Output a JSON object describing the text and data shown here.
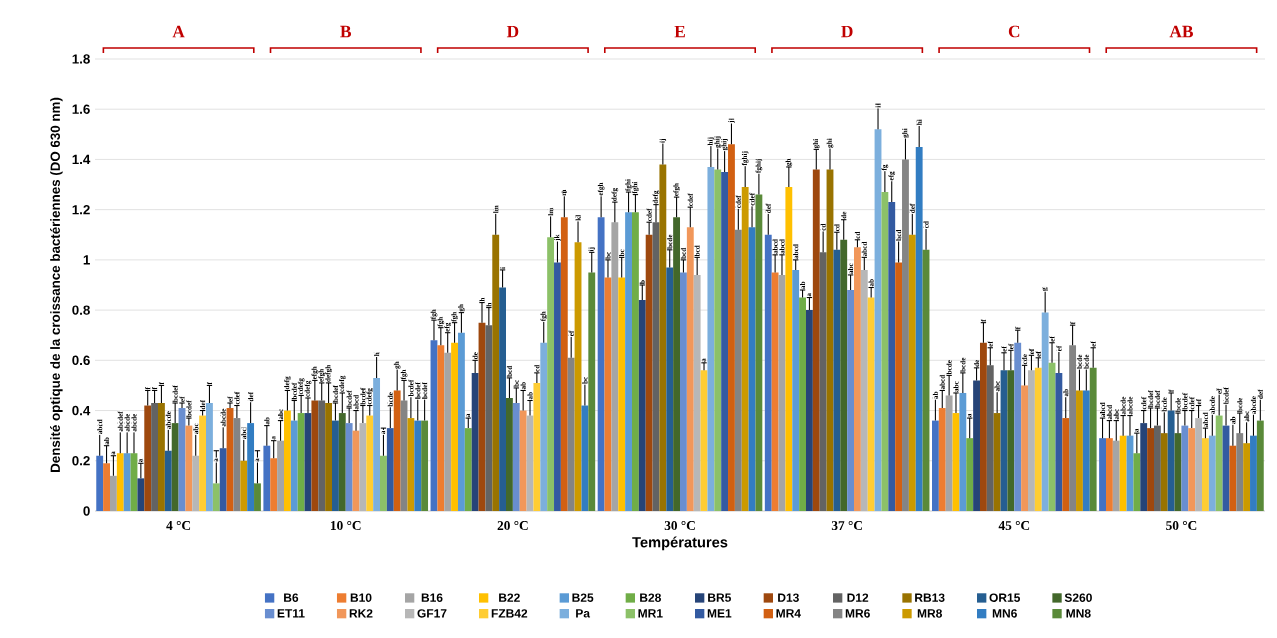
{
  "chart_data": {
    "type": "bar",
    "xlabel": "Températures",
    "ylabel": "Densité optique de la croissance bactériennes (DO 630 nm)",
    "categories": [
      "4 °C",
      "10 °C",
      "20 °C",
      "30 °C",
      "37 °C",
      "45 °C",
      "50 °C"
    ],
    "ylim": [
      0,
      1.8
    ],
    "yticks": [
      0,
      0.2,
      0.4,
      0.6,
      0.8,
      1,
      1.2,
      1.4,
      1.6,
      1.8
    ],
    "grid": "y",
    "legend": "bottom",
    "annotations": [
      "A",
      "B",
      "D",
      "E",
      "D",
      "C",
      "AB"
    ],
    "series": [
      {
        "name": "B6",
        "color": "#4472c4",
        "values": [
          0.22,
          0.26,
          0.68,
          1.17,
          1.1,
          0.36,
          0.29
        ],
        "errors": [
          0.12,
          0.08,
          0.08,
          0.09,
          0.09,
          0.09,
          0.08
        ],
        "value_labels": [
          "abcd",
          "ab",
          "fgh",
          "efgh",
          "def",
          "ab",
          "abcd"
        ]
      },
      {
        "name": "B10",
        "color": "#ed7d31",
        "values": [
          0.19,
          0.21,
          0.66,
          0.93,
          0.95,
          0.41,
          0.29
        ],
        "errors": [
          0.07,
          0.07,
          0.07,
          0.07,
          0.07,
          0.07,
          0.07
        ],
        "value_labels": [
          "ab",
          "a",
          "fgh",
          "bc",
          "abcd",
          "abcd",
          "abcd"
        ]
      },
      {
        "name": "B16",
        "color": "#a5a5a5",
        "values": [
          0.14,
          0.28,
          0.63,
          1.15,
          0.94,
          0.46,
          0.28
        ],
        "errors": [
          0.08,
          0.08,
          0.08,
          0.08,
          0.08,
          0.08,
          0.08
        ],
        "value_labels": [
          "a",
          "abc",
          "efg",
          "defg",
          "abcd",
          "bcde",
          "abc"
        ]
      },
      {
        "name": "B22",
        "color": "#ffc000",
        "values": [
          0.23,
          0.4,
          0.67,
          0.93,
          1.29,
          0.39,
          0.3
        ],
        "errors": [
          0.12,
          0.08,
          0.08,
          0.08,
          0.08,
          0.08,
          0.08
        ],
        "value_labels": [
          "abcdef",
          "defg",
          "fgh",
          "bc",
          "gh",
          "abc",
          "abcde"
        ]
      },
      {
        "name": "B25",
        "color": "#5b9bd5",
        "values": [
          0.23,
          0.36,
          0.71,
          1.19,
          0.96,
          0.47,
          0.3
        ],
        "errors": [
          0.12,
          0.08,
          0.08,
          0.08,
          0.04,
          0.08,
          0.08
        ],
        "value_labels": [
          "abcde",
          "bcdef",
          "gh",
          "fghi",
          "abcd",
          "bcde",
          "abcde"
        ]
      },
      {
        "name": "B28",
        "color": "#70ad47",
        "values": [
          0.23,
          0.39,
          0.33,
          1.19,
          0.85,
          0.29,
          0.23
        ],
        "errors": [
          0.12,
          0.07,
          0.04,
          0.07,
          0.03,
          0.08,
          0.08
        ],
        "value_labels": [
          "abcde",
          "cdefg",
          "a",
          "fghi",
          "ab",
          "a",
          "a"
        ]
      },
      {
        "name": "BR5",
        "color": "#264478",
        "values": [
          0.13,
          0.39,
          0.55,
          0.84,
          0.8,
          0.52,
          0.35
        ],
        "errors": [
          0.06,
          0.06,
          0.05,
          0.06,
          0.05,
          0.05,
          0.05
        ],
        "value_labels": [
          "a",
          "cdefg",
          "de",
          "b",
          "a",
          "de",
          "cdef"
        ]
      },
      {
        "name": "D13",
        "color": "#9e480e",
        "values": [
          0.42,
          0.44,
          0.75,
          1.1,
          1.36,
          0.67,
          0.33
        ],
        "errors": [
          0.06,
          0.08,
          0.08,
          0.05,
          0.08,
          0.08,
          0.08
        ],
        "value_labels": [
          "f",
          "efgh",
          "h",
          "cdef",
          "ghi",
          "f",
          "bcdef"
        ]
      },
      {
        "name": "D12",
        "color": "#636363",
        "values": [
          0.43,
          0.44,
          0.74,
          1.15,
          1.03,
          0.58,
          0.34
        ],
        "errors": [
          0.05,
          0.07,
          0.07,
          0.07,
          0.09,
          0.07,
          0.07
        ],
        "value_labels": [
          "f",
          "efgh",
          "h",
          "defg",
          "cd",
          "ef",
          "bcdef"
        ]
      },
      {
        "name": "RB13",
        "color": "#997300",
        "values": [
          0.43,
          0.43,
          1.1,
          1.38,
          1.36,
          0.39,
          0.31
        ],
        "errors": [
          0.07,
          0.08,
          0.1,
          0.1,
          0.1,
          0.1,
          0.1
        ],
        "value_labels": [
          "f",
          "defgh",
          "lm",
          "ij",
          "ghi",
          "abc",
          "bcde"
        ]
      },
      {
        "name": "OR15",
        "color": "#255e91",
        "values": [
          0.24,
          0.36,
          0.89,
          0.97,
          1.04,
          0.56,
          0.4
        ],
        "errors": [
          0.12,
          0.07,
          0.07,
          0.07,
          0.07,
          0.07,
          0.07
        ],
        "value_labels": [
          "abcde",
          "bcdef",
          "i",
          "bcde",
          "cd",
          "ef",
          "f"
        ]
      },
      {
        "name": "S260",
        "color": "#43682b",
        "values": [
          0.35,
          0.39,
          0.45,
          1.17,
          1.08,
          0.56,
          0.31
        ],
        "errors": [
          0.08,
          0.08,
          0.08,
          0.08,
          0.08,
          0.08,
          0.08
        ],
        "value_labels": [
          "bcdef",
          "cdefg",
          "bcd",
          "efgh",
          "de",
          "ef",
          "bcde"
        ]
      },
      {
        "name": "ET11",
        "color": "#698ed0",
        "values": [
          0.41,
          0.35,
          0.43,
          0.95,
          0.88,
          0.67,
          0.34
        ],
        "errors": [
          0.02,
          0.06,
          0.06,
          0.05,
          0.06,
          0.05,
          0.06
        ],
        "value_labels": [
          "ef",
          "bcdef",
          "bc",
          "bcd",
          "abc",
          "f",
          "bcdef"
        ]
      },
      {
        "name": "RK2",
        "color": "#f1975a",
        "values": [
          0.34,
          0.32,
          0.4,
          1.13,
          1.05,
          0.5,
          0.33
        ],
        "errors": [
          0.03,
          0.08,
          0.08,
          0.08,
          0.03,
          0.08,
          0.07
        ],
        "value_labels": [
          "bcdef",
          "abcd",
          "ab",
          "cdef",
          "cd",
          "cde",
          "cdef"
        ]
      },
      {
        "name": "GF17",
        "color": "#b7b7b7",
        "values": [
          0.22,
          0.35,
          0.38,
          0.94,
          0.96,
          0.56,
          0.37
        ],
        "errors": [
          0.11,
          0.07,
          0.06,
          0.07,
          0.05,
          0.06,
          0.05
        ],
        "value_labels": [
          "abc",
          "bcdef",
          "ab",
          "bcd",
          "abcd",
          "ef",
          "ef"
        ]
      },
      {
        "name": "FZB42",
        "color": "#ffcd33",
        "values": [
          0.38,
          0.38,
          0.51,
          0.56,
          0.85,
          0.57,
          0.29
        ],
        "errors": [
          0.02,
          0.04,
          0.04,
          0.03,
          0.04,
          0.04,
          0.04
        ],
        "value_labels": [
          "def",
          "cdefg",
          "cd",
          "a",
          "ab",
          "ef",
          "abcd"
        ]
      },
      {
        "name": "Pa",
        "color": "#7cafdd",
        "values": [
          0.43,
          0.53,
          0.67,
          1.37,
          1.52,
          0.79,
          0.3
        ],
        "errors": [
          0.07,
          0.1,
          0.1,
          0.1,
          0.1,
          0.1,
          0.1
        ],
        "value_labels": [
          "f",
          "h",
          "fgh",
          "hij",
          "i",
          "g",
          "abcde"
        ]
      },
      {
        "name": "MR1",
        "color": "#8cc168",
        "values": [
          0.11,
          0.22,
          1.09,
          1.36,
          1.27,
          0.59,
          0.38
        ],
        "errors": [
          0.13,
          0.11,
          0.11,
          0.11,
          0.1,
          0.08,
          0.1
        ],
        "value_labels": [
          "a",
          "a",
          "lm",
          "ghij",
          "fg",
          "ef",
          "ef"
        ]
      },
      {
        "name": "ME1",
        "color": "#335aa1",
        "values": [
          0.25,
          0.33,
          0.99,
          1.35,
          1.23,
          0.55,
          0.34
        ],
        "errors": [
          0.13,
          0.1,
          0.1,
          0.1,
          0.1,
          0.09,
          0.1
        ],
        "value_labels": [
          "abcde",
          "bcde",
          "jk",
          "ghij",
          "efg",
          "ef",
          "bcdef"
        ]
      },
      {
        "name": "MR4",
        "color": "#d26012",
        "values": [
          0.41,
          0.48,
          1.17,
          1.46,
          0.99,
          0.37,
          0.26
        ],
        "errors": [
          0.02,
          0.1,
          0.1,
          0.1,
          0.1,
          0.1,
          0.1
        ],
        "value_labels": [
          "ef",
          "gh",
          "m",
          "j",
          "bcd",
          "ab",
          "ab"
        ]
      },
      {
        "name": "MR6",
        "color": "#848484",
        "values": [
          0.37,
          0.44,
          0.61,
          1.12,
          1.4,
          0.66,
          0.31
        ],
        "errors": [
          0.05,
          0.08,
          0.09,
          0.09,
          0.09,
          0.08,
          0.08
        ],
        "value_labels": [
          "cdef",
          "fgh",
          "ef",
          "cdef",
          "ghi",
          "f",
          "bcde"
        ]
      },
      {
        "name": "MR8",
        "color": "#cc9a00",
        "values": [
          0.2,
          0.37,
          1.07,
          1.29,
          1.1,
          0.48,
          0.27
        ],
        "errors": [
          0.13,
          0.09,
          0.1,
          0.1,
          0.09,
          0.1,
          0.09
        ],
        "value_labels": [
          "abc",
          "bcdef",
          "kl",
          "fghij",
          "def",
          "bcde",
          "abc"
        ]
      },
      {
        "name": "MN6",
        "color": "#327dc2",
        "values": [
          0.35,
          0.36,
          0.42,
          1.13,
          1.45,
          0.48,
          0.3
        ],
        "errors": [
          0.09,
          0.09,
          0.09,
          0.1,
          0.1,
          0.1,
          0.1
        ],
        "value_labels": [
          "def",
          "bcdef",
          "bc",
          "cdef",
          "hi",
          "bcde",
          "abcde"
        ]
      },
      {
        "name": "MN8",
        "color": "#5a8a39",
        "values": [
          0.11,
          0.36,
          0.95,
          1.26,
          1.04,
          0.57,
          0.36
        ],
        "errors": [
          0.13,
          0.09,
          0.08,
          0.1,
          0.09,
          0.08,
          0.09
        ],
        "value_labels": [
          "a",
          "bcdef",
          "ij",
          "fghij",
          "cd",
          "ef",
          "def"
        ]
      }
    ]
  }
}
